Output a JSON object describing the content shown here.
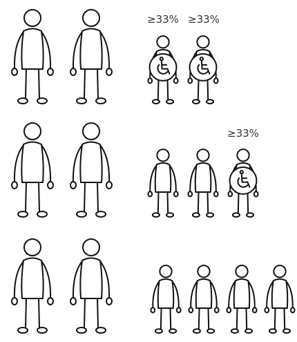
{
  "rows": [
    {
      "disability_labels": [
        "≥33%",
        "≥33%"
      ]
    },
    {
      "disability_labels": [
        "≥33%"
      ]
    }
  ]
}
